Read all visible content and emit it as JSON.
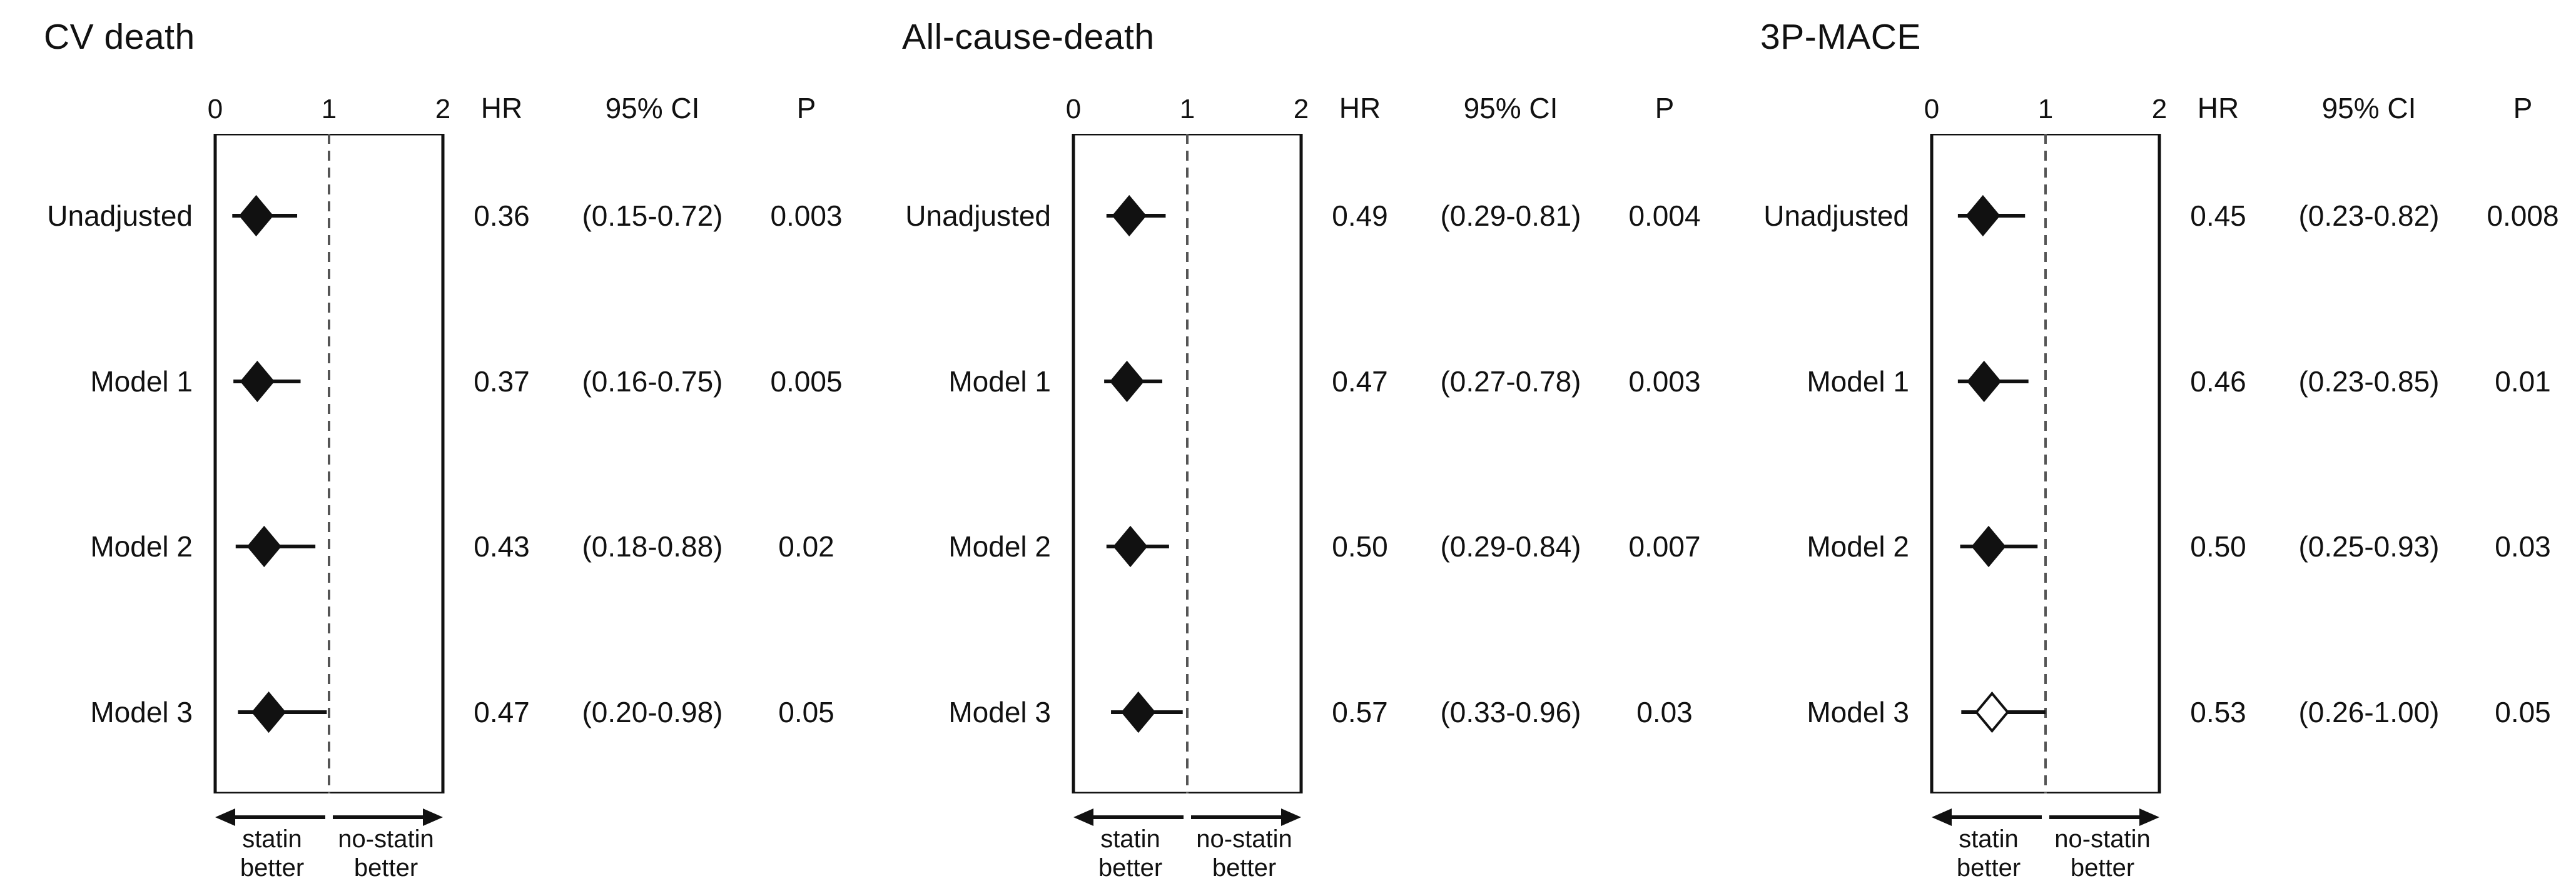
{
  "figure": {
    "panels": [
      {
        "title": "CV death",
        "columns": {
          "hr": "HR",
          "ci": "95% CI",
          "p": "P"
        },
        "axis": {
          "ticks": [
            "0",
            "1",
            "2"
          ]
        },
        "direction_labels": {
          "left": [
            "statin",
            "better"
          ],
          "right": [
            "no-statin",
            "better"
          ]
        },
        "rows": [
          {
            "label": "Unadjusted",
            "hr": "0.36",
            "ci": "(0.15-0.72)",
            "p": "0.003"
          },
          {
            "label": "Model 1",
            "hr": "0.37",
            "ci": "(0.16-0.75)",
            "p": "0.005"
          },
          {
            "label": "Model 2",
            "hr": "0.43",
            "ci": "(0.18-0.88)",
            "p": "0.02"
          },
          {
            "label": "Model 3",
            "hr": "0.47",
            "ci": "(0.20-0.98)",
            "p": "0.05"
          }
        ]
      },
      {
        "title": "All-cause-death",
        "columns": {
          "hr": "HR",
          "ci": "95% CI",
          "p": "P"
        },
        "axis": {
          "ticks": [
            "0",
            "1",
            "2"
          ]
        },
        "direction_labels": {
          "left": [
            "statin",
            "better"
          ],
          "right": [
            "no-statin",
            "better"
          ]
        },
        "rows": [
          {
            "label": "Unadjusted",
            "hr": "0.49",
            "ci": "(0.29-0.81)",
            "p": "0.004"
          },
          {
            "label": "Model 1",
            "hr": "0.47",
            "ci": "(0.27-0.78)",
            "p": "0.003"
          },
          {
            "label": "Model 2",
            "hr": "0.50",
            "ci": "(0.29-0.84)",
            "p": "0.007"
          },
          {
            "label": "Model 3",
            "hr": "0.57",
            "ci": "(0.33-0.96)",
            "p": "0.03"
          }
        ]
      },
      {
        "title": "3P-MACE",
        "columns": {
          "hr": "HR",
          "ci": "95% CI",
          "p": "P"
        },
        "axis": {
          "ticks": [
            "0",
            "1",
            "2"
          ]
        },
        "direction_labels": {
          "left": [
            "statin",
            "better"
          ],
          "right": [
            "no-statin",
            "better"
          ]
        },
        "rows": [
          {
            "label": "Unadjusted",
            "hr": "0.45",
            "ci": "(0.23-0.82)",
            "p": "0.008"
          },
          {
            "label": "Model 1",
            "hr": "0.46",
            "ci": "(0.23-0.85)",
            "p": "0.01"
          },
          {
            "label": "Model 2",
            "hr": "0.50",
            "ci": "(0.25-0.93)",
            "p": "0.03"
          },
          {
            "label": "Model 3",
            "hr": "0.53",
            "ci": "(0.26-1.00)",
            "p": "0.05"
          }
        ]
      }
    ]
  },
  "chart_data": [
    {
      "type": "scatter",
      "subtype": "forest-plot",
      "title": "CV death",
      "xlim": [
        0,
        2
      ],
      "xticks": [
        0,
        1,
        2
      ],
      "reference_line": 1,
      "arrow_labels": {
        "left": "statin better",
        "right": "no-statin better"
      },
      "columns": [
        "HR",
        "95% CI",
        "P"
      ],
      "rows": [
        {
          "label": "Unadjusted",
          "hr": 0.36,
          "ci_low": 0.15,
          "ci_high": 0.72,
          "p": 0.003,
          "marker": "filled-diamond"
        },
        {
          "label": "Model 1",
          "hr": 0.37,
          "ci_low": 0.16,
          "ci_high": 0.75,
          "p": 0.005,
          "marker": "filled-diamond"
        },
        {
          "label": "Model 2",
          "hr": 0.43,
          "ci_low": 0.18,
          "ci_high": 0.88,
          "p": 0.02,
          "marker": "filled-diamond"
        },
        {
          "label": "Model 3",
          "hr": 0.47,
          "ci_low": 0.2,
          "ci_high": 0.98,
          "p": 0.05,
          "marker": "filled-diamond"
        }
      ]
    },
    {
      "type": "scatter",
      "subtype": "forest-plot",
      "title": "All-cause-death",
      "xlim": [
        0,
        2
      ],
      "xticks": [
        0,
        1,
        2
      ],
      "reference_line": 1,
      "arrow_labels": {
        "left": "statin better",
        "right": "no-statin better"
      },
      "columns": [
        "HR",
        "95% CI",
        "P"
      ],
      "rows": [
        {
          "label": "Unadjusted",
          "hr": 0.49,
          "ci_low": 0.29,
          "ci_high": 0.81,
          "p": 0.004,
          "marker": "filled-diamond"
        },
        {
          "label": "Model 1",
          "hr": 0.47,
          "ci_low": 0.27,
          "ci_high": 0.78,
          "p": 0.003,
          "marker": "filled-diamond"
        },
        {
          "label": "Model 2",
          "hr": 0.5,
          "ci_low": 0.29,
          "ci_high": 0.84,
          "p": 0.007,
          "marker": "filled-diamond"
        },
        {
          "label": "Model 3",
          "hr": 0.57,
          "ci_low": 0.33,
          "ci_high": 0.96,
          "p": 0.03,
          "marker": "filled-diamond"
        }
      ]
    },
    {
      "type": "scatter",
      "subtype": "forest-plot",
      "title": "3P-MACE",
      "xlim": [
        0,
        2
      ],
      "xticks": [
        0,
        1,
        2
      ],
      "reference_line": 1,
      "arrow_labels": {
        "left": "statin better",
        "right": "no-statin better"
      },
      "columns": [
        "HR",
        "95% CI",
        "P"
      ],
      "rows": [
        {
          "label": "Unadjusted",
          "hr": 0.45,
          "ci_low": 0.23,
          "ci_high": 0.82,
          "p": 0.008,
          "marker": "filled-diamond"
        },
        {
          "label": "Model 1",
          "hr": 0.46,
          "ci_low": 0.23,
          "ci_high": 0.85,
          "p": 0.01,
          "marker": "filled-diamond"
        },
        {
          "label": "Model 2",
          "hr": 0.5,
          "ci_low": 0.25,
          "ci_high": 0.93,
          "p": 0.03,
          "marker": "filled-diamond"
        },
        {
          "label": "Model 3",
          "hr": 0.53,
          "ci_low": 0.26,
          "ci_high": 1.0,
          "p": 0.05,
          "marker": "open-diamond"
        }
      ]
    }
  ]
}
